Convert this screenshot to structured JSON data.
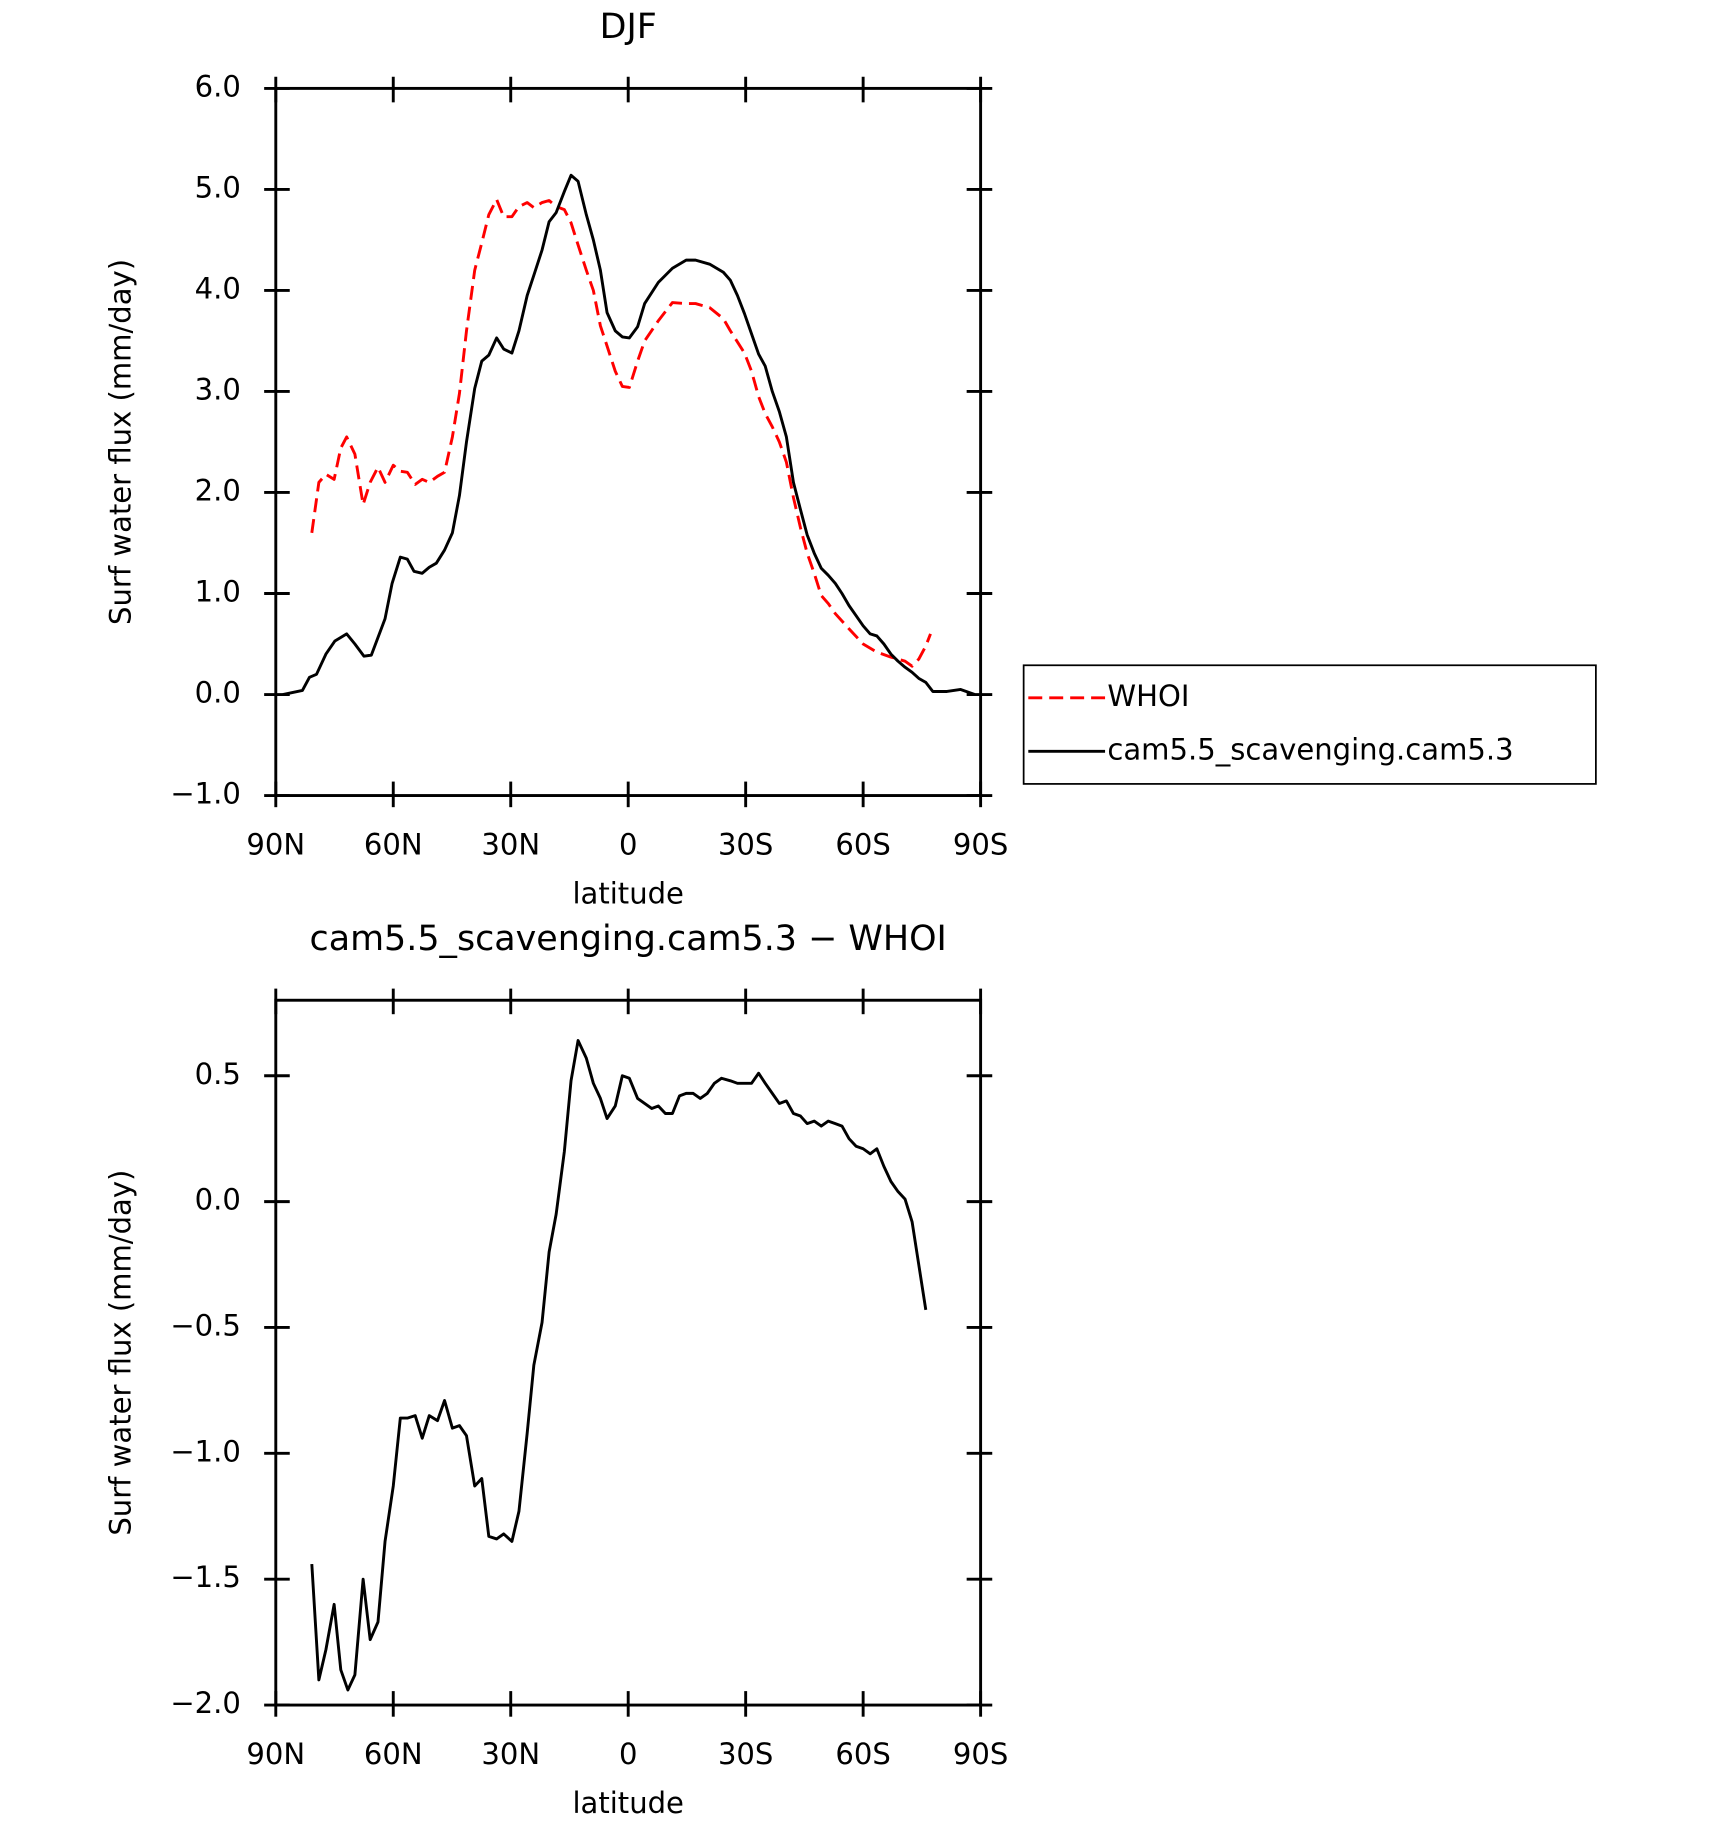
{
  "chart_data": [
    {
      "type": "line",
      "title": "DJF",
      "xlabel": "latitude",
      "ylabel": "Surf water flux (mm/day)",
      "xlim": [
        90,
        -90
      ],
      "xticks": [
        {
          "value": 90,
          "label": "90N"
        },
        {
          "value": 60,
          "label": "60N"
        },
        {
          "value": 30,
          "label": "30N"
        },
        0,
        {
          "value": -30,
          "label": "30S"
        },
        {
          "value": -60,
          "label": "60S"
        },
        {
          "value": -90,
          "label": "90S"
        }
      ],
      "ylim": [
        -1.0,
        6.0
      ],
      "yticks": [
        {
          "value": -1,
          "label": "−1.0"
        },
        {
          "value": 0,
          "label": "0.0"
        },
        {
          "value": 1,
          "label": "1.0"
        },
        {
          "value": 2,
          "label": "2.0"
        },
        {
          "value": 3,
          "label": "3.0"
        },
        {
          "value": 4,
          "label": "4.0"
        },
        {
          "value": 5,
          "label": "5.0"
        },
        {
          "value": 6,
          "label": "6.0"
        }
      ],
      "legend": "outside-right",
      "series": [
        {
          "name": "WHOI",
          "color": "#ff0000",
          "style": "dashed",
          "x": [
            80.8,
            79.0,
            77.2,
            75.1,
            73.4,
            71.9,
            69.8,
            67.7,
            65.9,
            63.9,
            62.1,
            60.0,
            58.2,
            56.4,
            54.4,
            52.6,
            50.8,
            48.7,
            46.9,
            44.9,
            43.1,
            41.3,
            39.2,
            37.4,
            35.6,
            33.6,
            31.8,
            29.7,
            27.9,
            25.8,
            24.1,
            22.0,
            20.2,
            18.4,
            16.3,
            14.6,
            12.8,
            10.7,
            8.9,
            7.1,
            5.4,
            3.3,
            1.5,
            -0.3,
            -2.4,
            -4.2,
            -7.7,
            -11.3,
            -14.8,
            -17.2,
            -20.8,
            -24.3,
            -26.1,
            -29.7,
            -31.5,
            -33.3,
            -35.0,
            -36.8,
            -38.6,
            -40.4,
            -42.2,
            -44.0,
            -45.7,
            -47.5,
            -49.3,
            -51.1,
            -52.9,
            -56.4,
            -60.0,
            -63.5,
            -67.1,
            -70.7,
            -72.5,
            -74.2,
            -76.0,
            -77.2
          ],
          "values": [
            1.6,
            2.1,
            2.18,
            2.13,
            2.44,
            2.55,
            2.38,
            1.88,
            2.1,
            2.25,
            2.1,
            2.27,
            2.21,
            2.2,
            2.08,
            2.13,
            2.1,
            2.16,
            2.2,
            2.55,
            2.98,
            3.6,
            4.2,
            4.47,
            4.75,
            4.9,
            4.73,
            4.73,
            4.83,
            4.87,
            4.82,
            4.87,
            4.89,
            4.83,
            4.8,
            4.67,
            4.45,
            4.2,
            4.0,
            3.65,
            3.45,
            3.2,
            3.05,
            3.04,
            3.3,
            3.5,
            3.7,
            3.88,
            3.87,
            3.87,
            3.83,
            3.72,
            3.6,
            3.38,
            3.2,
            2.95,
            2.78,
            2.65,
            2.5,
            2.3,
            1.95,
            1.65,
            1.4,
            1.2,
            0.98,
            0.9,
            0.8,
            0.65,
            0.5,
            0.42,
            0.37,
            0.33,
            0.28,
            0.35,
            0.48,
            0.6
          ]
        },
        {
          "name": "cam5.5_scavenging.cam5.3",
          "color": "#000000",
          "style": "solid",
          "x": [
            88.2,
            83.2,
            81.4,
            79.6,
            77.2,
            74.9,
            71.9,
            69.8,
            67.5,
            65.6,
            62.1,
            60.3,
            58.2,
            56.4,
            54.7,
            52.6,
            50.8,
            49.0,
            46.9,
            44.9,
            43.1,
            41.3,
            39.2,
            37.4,
            35.6,
            33.6,
            31.8,
            29.7,
            27.9,
            25.8,
            24.1,
            22.0,
            20.2,
            18.4,
            16.3,
            14.6,
            12.8,
            10.7,
            8.9,
            7.1,
            5.4,
            3.3,
            1.5,
            -0.3,
            -2.4,
            -4.2,
            -7.7,
            -11.3,
            -14.8,
            -17.2,
            -20.8,
            -24.3,
            -26.1,
            -27.9,
            -29.7,
            -31.5,
            -33.3,
            -35.0,
            -36.8,
            -38.6,
            -40.4,
            -42.2,
            -44.0,
            -45.7,
            -47.5,
            -49.3,
            -51.1,
            -52.9,
            -54.6,
            -56.4,
            -58.2,
            -60.0,
            -61.8,
            -63.5,
            -65.3,
            -67.1,
            -68.9,
            -70.7,
            -72.5,
            -74.2,
            -76.0,
            -77.8,
            -81.4,
            -84.9,
            -88.5
          ],
          "values": [
            0,
            0.04,
            0.17,
            0.2,
            0.4,
            0.53,
            0.6,
            0.5,
            0.38,
            0.39,
            0.75,
            1.1,
            1.36,
            1.34,
            1.22,
            1.2,
            1.26,
            1.3,
            1.43,
            1.6,
            1.97,
            2.5,
            3.03,
            3.3,
            3.36,
            3.53,
            3.42,
            3.38,
            3.6,
            3.95,
            4.15,
            4.4,
            4.68,
            4.77,
            4.98,
            5.14,
            5.08,
            4.75,
            4.5,
            4.2,
            3.78,
            3.6,
            3.54,
            3.53,
            3.64,
            3.87,
            4.08,
            4.22,
            4.3,
            4.3,
            4.26,
            4.18,
            4.1,
            3.95,
            3.77,
            3.57,
            3.37,
            3.25,
            3.0,
            2.8,
            2.55,
            2.1,
            1.83,
            1.58,
            1.4,
            1.25,
            1.18,
            1.1,
            1.0,
            0.88,
            0.78,
            0.68,
            0.6,
            0.58,
            0.5,
            0.4,
            0.33,
            0.27,
            0.22,
            0.16,
            0.12,
            0.03,
            0.03,
            0.05,
            0.0
          ]
        }
      ]
    },
    {
      "type": "line",
      "title": "cam5.5_scavenging.cam5.3 − WHOI",
      "xlabel": "latitude",
      "ylabel": "Surf water flux (mm/day)",
      "xlim": [
        90,
        -90
      ],
      "xticks": [
        {
          "value": 90,
          "label": "90N"
        },
        {
          "value": 60,
          "label": "60N"
        },
        {
          "value": 30,
          "label": "30N"
        },
        0,
        {
          "value": -30,
          "label": "30S"
        },
        {
          "value": -60,
          "label": "60S"
        },
        {
          "value": -90,
          "label": "90S"
        }
      ],
      "ylim": [
        -2.0,
        0.8
      ],
      "yticks": [
        {
          "value": -2,
          "label": "−2.0"
        },
        {
          "value": -1.5,
          "label": "−1.5"
        },
        {
          "value": -1,
          "label": "−1.0"
        },
        {
          "value": -0.5,
          "label": "−0.5"
        },
        {
          "value": 0,
          "label": "0.0"
        },
        0.5
      ],
      "series": [
        {
          "color": "#000000",
          "style": "solid",
          "x": [
            80.8,
            79.0,
            77.2,
            75.1,
            73.4,
            71.6,
            69.8,
            67.7,
            65.9,
            63.9,
            62.1,
            60.0,
            58.2,
            56.4,
            54.4,
            52.6,
            50.8,
            48.7,
            46.9,
            44.9,
            43.1,
            41.3,
            39.2,
            37.4,
            35.6,
            33.6,
            31.8,
            29.7,
            27.9,
            25.8,
            24.1,
            22.0,
            20.2,
            18.4,
            16.3,
            14.6,
            12.8,
            10.7,
            8.9,
            7.1,
            5.4,
            3.3,
            1.5,
            -0.3,
            -2.4,
            -4.2,
            -6.0,
            -7.7,
            -9.5,
            -11.3,
            -13.1,
            -14.8,
            -16.6,
            -18.4,
            -20.2,
            -22.0,
            -23.8,
            -26.1,
            -27.9,
            -29.7,
            -31.5,
            -33.3,
            -35.0,
            -36.8,
            -38.6,
            -40.4,
            -42.2,
            -44.0,
            -45.7,
            -47.5,
            -49.3,
            -51.1,
            -52.9,
            -54.6,
            -56.4,
            -58.2,
            -60.0,
            -61.8,
            -63.5,
            -65.3,
            -67.1,
            -68.9,
            -70.7,
            -72.5,
            -74.2,
            -76.0
          ],
          "values": [
            -1.44,
            -1.9,
            -1.78,
            -1.6,
            -1.86,
            -1.94,
            -1.88,
            -1.5,
            -1.74,
            -1.67,
            -1.35,
            -1.13,
            -0.86,
            -0.86,
            -0.85,
            -0.94,
            -0.85,
            -0.87,
            -0.79,
            -0.9,
            -0.89,
            -0.93,
            -1.13,
            -1.1,
            -1.33,
            -1.34,
            -1.32,
            -1.35,
            -1.23,
            -0.92,
            -0.65,
            -0.48,
            -0.2,
            -0.05,
            0.2,
            0.48,
            0.64,
            0.57,
            0.47,
            0.41,
            0.33,
            0.38,
            0.5,
            0.49,
            0.41,
            0.39,
            0.37,
            0.38,
            0.35,
            0.35,
            0.42,
            0.43,
            0.43,
            0.41,
            0.43,
            0.47,
            0.49,
            0.48,
            0.47,
            0.47,
            0.47,
            0.51,
            0.47,
            0.43,
            0.39,
            0.4,
            0.35,
            0.34,
            0.31,
            0.32,
            0.3,
            0.32,
            0.31,
            0.3,
            0.25,
            0.22,
            0.21,
            0.19,
            0.21,
            0.14,
            0.08,
            0.04,
            0.01,
            -0.08,
            -0.25,
            -0.43
          ]
        }
      ]
    }
  ]
}
